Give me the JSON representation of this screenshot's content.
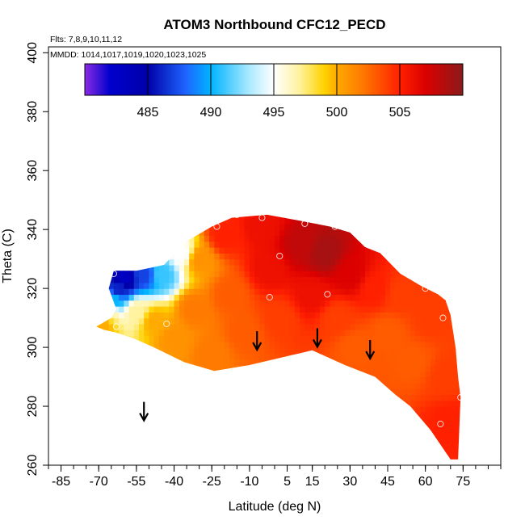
{
  "chart_data": {
    "type": "heatmap",
    "title": "ATOM3 Northbound CFC12_PECD",
    "flights_label": "Flts: 7,8,9,10,11,12",
    "dates_label": "MMDD: 1014,1017,1019,1020,1023,1025",
    "xlabel": "Latitude (deg N)",
    "ylabel": "Theta (C)",
    "xlim": [
      -90,
      90
    ],
    "ylim": [
      260,
      402
    ],
    "x_ticks": [
      -85,
      -70,
      -55,
      -40,
      -25,
      -10,
      5,
      15,
      30,
      45,
      60,
      75
    ],
    "x_tick_labels": [
      "-85",
      "-70",
      "-55",
      "-40",
      "-25",
      "-10",
      "5",
      "15",
      "30",
      "45",
      "60",
      "75"
    ],
    "y_ticks": [
      260,
      280,
      300,
      320,
      340,
      360,
      380,
      400
    ],
    "y_tick_labels": [
      "260",
      "280",
      "300",
      "320",
      "340",
      "360",
      "380",
      "400"
    ],
    "colorbar": {
      "range": [
        480,
        510
      ],
      "ticks": [
        485,
        490,
        495,
        500,
        505
      ],
      "tick_labels": [
        "485",
        "490",
        "495",
        "500",
        "505"
      ],
      "stops": [
        {
          "v": 480,
          "c": "#8a2be2"
        },
        {
          "v": 482,
          "c": "#0000cd"
        },
        {
          "v": 485,
          "c": "#0000a8"
        },
        {
          "v": 488,
          "c": "#1e64ff"
        },
        {
          "v": 490,
          "c": "#00b4ff"
        },
        {
          "v": 493,
          "c": "#a8e8ff"
        },
        {
          "v": 495,
          "c": "#ffffff"
        },
        {
          "v": 497,
          "c": "#fff3a0"
        },
        {
          "v": 499,
          "c": "#ffd200"
        },
        {
          "v": 500,
          "c": "#ffaa00"
        },
        {
          "v": 502,
          "c": "#ff7a00"
        },
        {
          "v": 505,
          "c": "#ff2000"
        },
        {
          "v": 507,
          "c": "#dc0000"
        },
        {
          "v": 510,
          "c": "#8b1a1a"
        }
      ]
    },
    "outline": [
      [
        -71,
        307
      ],
      [
        -65,
        310
      ],
      [
        -63,
        313
      ],
      [
        -66,
        320
      ],
      [
        -64,
        326
      ],
      [
        -55,
        326
      ],
      [
        -44,
        328
      ],
      [
        -35,
        336
      ],
      [
        -25,
        341
      ],
      [
        -17,
        344
      ],
      [
        -3,
        345
      ],
      [
        10,
        343
      ],
      [
        22,
        341
      ],
      [
        30,
        339
      ],
      [
        36,
        334
      ],
      [
        42,
        332
      ],
      [
        50,
        325
      ],
      [
        58,
        321
      ],
      [
        65,
        318
      ],
      [
        68,
        316
      ],
      [
        70,
        311
      ],
      [
        72,
        300
      ],
      [
        73,
        290
      ],
      [
        74,
        283
      ],
      [
        73,
        262
      ],
      [
        70,
        262
      ],
      [
        62,
        272
      ],
      [
        54,
        280
      ],
      [
        48,
        284
      ],
      [
        40,
        290
      ],
      [
        28,
        294
      ],
      [
        15,
        299
      ],
      [
        5,
        297
      ],
      [
        -10,
        294
      ],
      [
        -24,
        292
      ],
      [
        -36,
        295
      ],
      [
        -48,
        300
      ],
      [
        -56,
        303
      ],
      [
        -63,
        305
      ],
      [
        -68,
        306
      ]
    ],
    "samples": [
      {
        "lat": -72,
        "theta": 306,
        "value": 500
      },
      {
        "lat": -68,
        "theta": 308,
        "value": 500
      },
      {
        "lat": -66,
        "theta": 312,
        "value": 497
      },
      {
        "lat": -64,
        "theta": 316,
        "value": 490
      },
      {
        "lat": -62,
        "theta": 320,
        "value": 486
      },
      {
        "lat": -60,
        "theta": 324,
        "value": 483
      },
      {
        "lat": -52,
        "theta": 325,
        "value": 487
      },
      {
        "lat": -45,
        "theta": 325,
        "value": 491
      },
      {
        "lat": -37,
        "theta": 332,
        "value": 495
      },
      {
        "lat": -55,
        "theta": 312,
        "value": 497
      },
      {
        "lat": -48,
        "theta": 309,
        "value": 500
      },
      {
        "lat": -40,
        "theta": 303,
        "value": 501
      },
      {
        "lat": -30,
        "theta": 330,
        "value": 501
      },
      {
        "lat": -32,
        "theta": 313,
        "value": 502
      },
      {
        "lat": -25,
        "theta": 298,
        "value": 502
      },
      {
        "lat": -20,
        "theta": 338,
        "value": 505
      },
      {
        "lat": -18,
        "theta": 318,
        "value": 503
      },
      {
        "lat": -12,
        "theta": 305,
        "value": 503
      },
      {
        "lat": -5,
        "theta": 341,
        "value": 506
      },
      {
        "lat": -2,
        "theta": 327,
        "value": 506
      },
      {
        "lat": 2,
        "theta": 310,
        "value": 504
      },
      {
        "lat": 10,
        "theta": 335,
        "value": 508
      },
      {
        "lat": 20,
        "theta": 332,
        "value": 509
      },
      {
        "lat": 15,
        "theta": 318,
        "value": 506
      },
      {
        "lat": 25,
        "theta": 310,
        "value": 504
      },
      {
        "lat": 30,
        "theta": 325,
        "value": 507
      },
      {
        "lat": 32,
        "theta": 300,
        "value": 503
      },
      {
        "lat": 40,
        "theta": 320,
        "value": 505
      },
      {
        "lat": 45,
        "theta": 305,
        "value": 503
      },
      {
        "lat": 50,
        "theta": 318,
        "value": 504
      },
      {
        "lat": 55,
        "theta": 295,
        "value": 503
      },
      {
        "lat": 62,
        "theta": 310,
        "value": 504
      },
      {
        "lat": 68,
        "theta": 290,
        "value": 504
      },
      {
        "lat": 70,
        "theta": 275,
        "value": 505
      }
    ],
    "points": [
      {
        "lat": -64,
        "theta": 325
      },
      {
        "lat": -63,
        "theta": 307
      },
      {
        "lat": -43,
        "theta": 308
      },
      {
        "lat": -23,
        "theta": 341
      },
      {
        "lat": -15,
        "theta": 345
      },
      {
        "lat": -5,
        "theta": 344
      },
      {
        "lat": -2,
        "theta": 317
      },
      {
        "lat": 2,
        "theta": 331
      },
      {
        "lat": 12,
        "theta": 342
      },
      {
        "lat": 21,
        "theta": 318
      },
      {
        "lat": 24,
        "theta": 341
      },
      {
        "lat": 60,
        "theta": 320
      },
      {
        "lat": 68,
        "theta": 318
      },
      {
        "lat": 67,
        "theta": 310
      },
      {
        "lat": 66,
        "theta": 274
      },
      {
        "lat": 74,
        "theta": 283
      }
    ],
    "arrows": [
      {
        "lat": -52,
        "theta": 276
      },
      {
        "lat": -7,
        "theta": 300
      },
      {
        "lat": 17,
        "theta": 301
      },
      {
        "lat": 38,
        "theta": 297
      }
    ]
  }
}
